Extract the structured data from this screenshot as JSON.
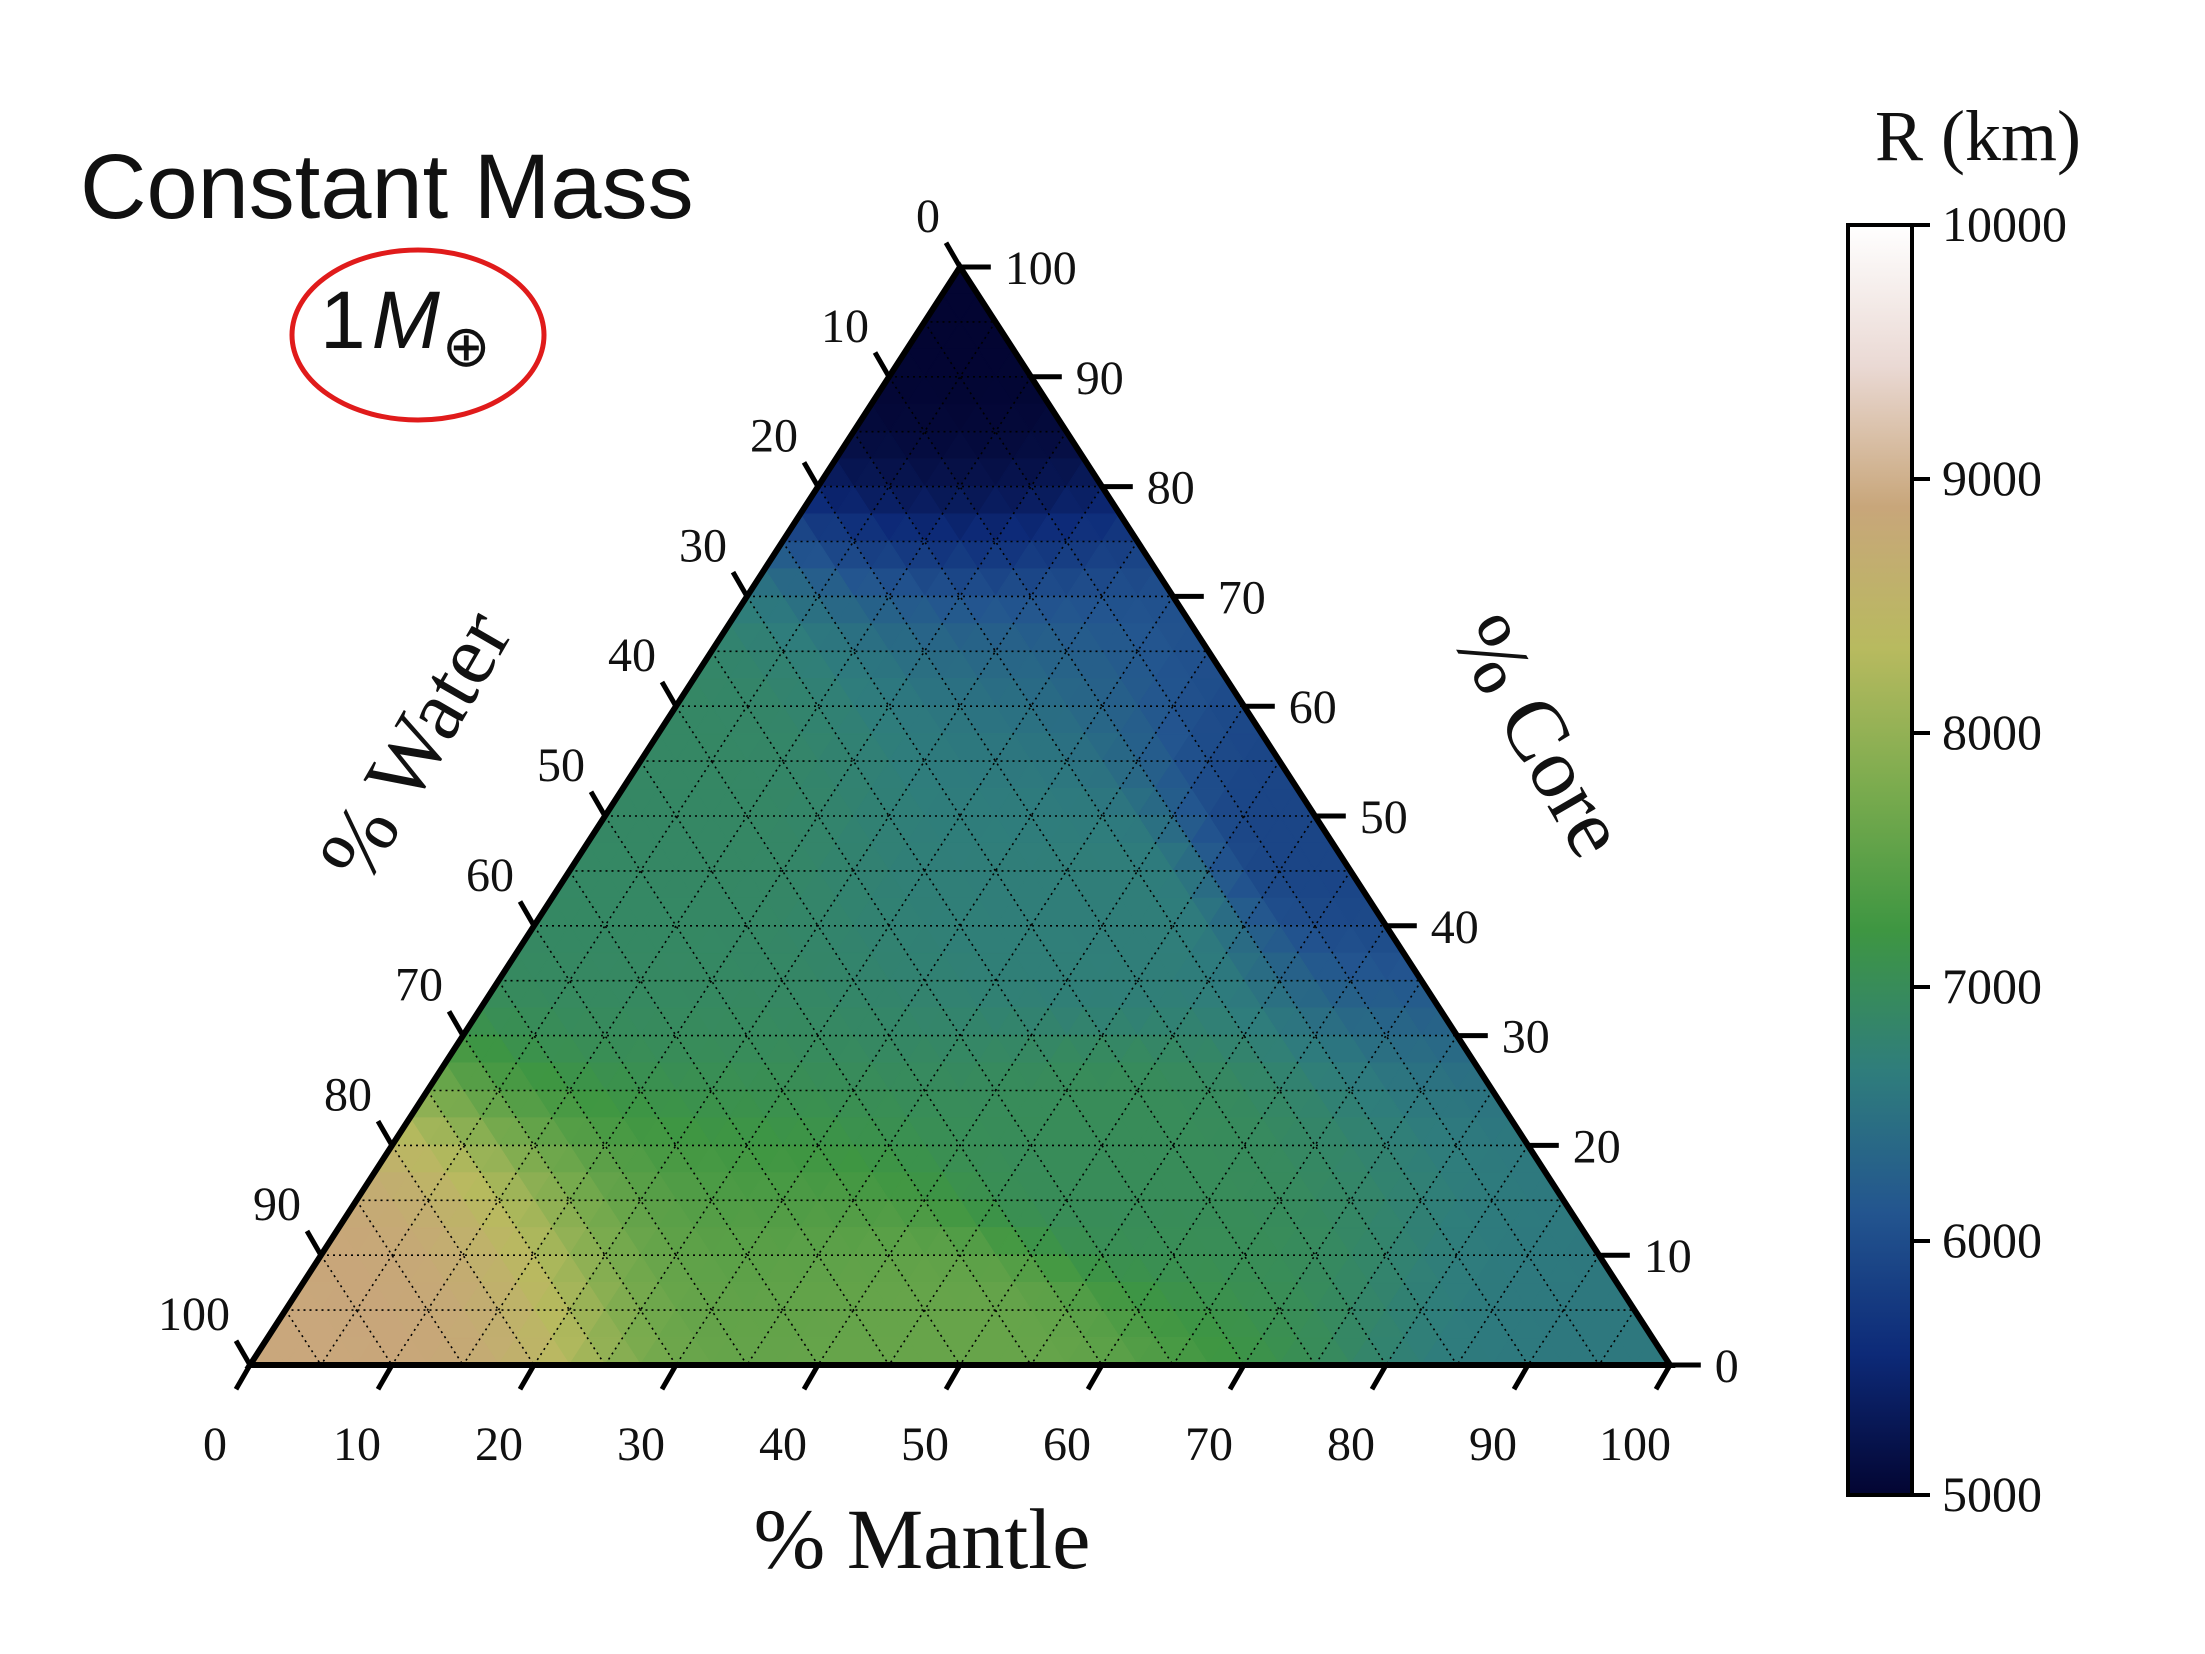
{
  "title": "Constant Mass",
  "mass_label": {
    "number": "1",
    "symbol": "M",
    "subscript": "⊕"
  },
  "colors": {
    "highlight_ellipse": "#e01b1b",
    "axis": "#000000",
    "colormap": [
      "#030532",
      "#0d2a78",
      "#23558f",
      "#2f7d7c",
      "#3e9642",
      "#7aab4e",
      "#b8ba5f",
      "#c8a67a",
      "#ead9d4",
      "#ffffff"
    ]
  },
  "chart_data": {
    "type": "heatmap",
    "subtype": "ternary",
    "title": "Constant Mass",
    "axes": {
      "bottom": {
        "label": "% Mantle",
        "ticks": [
          "0",
          "10",
          "20",
          "30",
          "40",
          "50",
          "60",
          "70",
          "80",
          "90",
          "100"
        ]
      },
      "left": {
        "label": "% Water",
        "ticks": [
          "0",
          "10",
          "20",
          "30",
          "40",
          "50",
          "60",
          "70",
          "80",
          "90",
          "100"
        ]
      },
      "right": {
        "label": "% Core",
        "ticks": [
          "0",
          "10",
          "20",
          "30",
          "40",
          "50",
          "60",
          "70",
          "80",
          "90",
          "100"
        ]
      }
    },
    "grid": true,
    "grid_step": 5,
    "colorbar": {
      "label": "R (km)",
      "range": [
        5000,
        10000
      ],
      "ticks": [
        "5000",
        "6000",
        "7000",
        "8000",
        "9000",
        "10000"
      ]
    },
    "vertex_values": {
      "pure_core": 5000,
      "pure_mantle": 6600,
      "pure_water": 8900
    },
    "sample_values": [
      {
        "core": 100,
        "mantle": 0,
        "water": 0,
        "R": 5000
      },
      {
        "core": 50,
        "mantle": 50,
        "water": 0,
        "R": 5900
      },
      {
        "core": 0,
        "mantle": 100,
        "water": 0,
        "R": 6600
      },
      {
        "core": 40,
        "mantle": 40,
        "water": 20,
        "R": 6700
      },
      {
        "core": 20,
        "mantle": 50,
        "water": 30,
        "R": 7000
      },
      {
        "core": 0,
        "mantle": 50,
        "water": 50,
        "R": 7600
      },
      {
        "core": 50,
        "mantle": 0,
        "water": 50,
        "R": 6900
      },
      {
        "core": 0,
        "mantle": 0,
        "water": 100,
        "R": 8900
      }
    ]
  }
}
